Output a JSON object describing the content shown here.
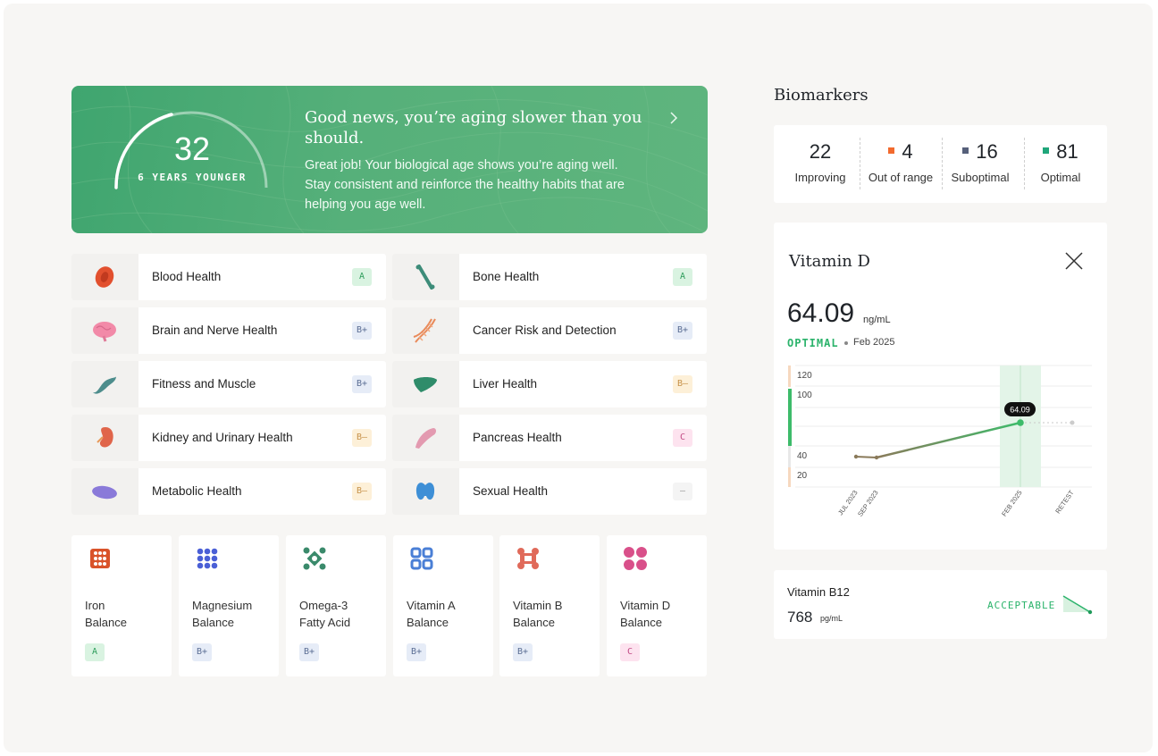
{
  "hero": {
    "age": "32",
    "age_caption": "6 YEARS YOUNGER",
    "title": "Good news, you’re aging slower than you should.",
    "body": "Great job! Your biological age shows you’re aging well. Stay consistent and reinforce the healthy habits that are helping you age well.",
    "accent": "#4fae78",
    "chevron_icon": "chevron-right-icon"
  },
  "health_categories": [
    {
      "label": "Blood Health",
      "grade": "A",
      "icon": "blood-cell-icon"
    },
    {
      "label": "Bone Health",
      "grade": "A",
      "icon": "bone-icon"
    },
    {
      "label": "Brain and Nerve Health",
      "grade": "B+",
      "icon": "brain-icon"
    },
    {
      "label": "Cancer Risk and Detection",
      "grade": "B+",
      "icon": "dna-icon"
    },
    {
      "label": "Fitness and Muscle",
      "grade": "B+",
      "icon": "muscle-icon"
    },
    {
      "label": "Liver Health",
      "grade": "B–",
      "icon": "liver-icon"
    },
    {
      "label": "Kidney and Urinary Health",
      "grade": "B–",
      "icon": "kidney-icon"
    },
    {
      "label": "Pancreas Health",
      "grade": "C",
      "icon": "pancreas-icon"
    },
    {
      "label": "Metabolic Health",
      "grade": "B–",
      "icon": "metabolic-icon"
    },
    {
      "label": "Sexual Health",
      "grade": "–",
      "icon": "thyroid-icon"
    }
  ],
  "nutrients": [
    {
      "line1": "Iron",
      "line2": "Balance",
      "grade": "A",
      "icon": "iron-grid-icon",
      "color": "#d9532a"
    },
    {
      "line1": "Magnesium",
      "line2": "Balance",
      "grade": "B+",
      "icon": "magnesium-grid-icon",
      "color": "#4a5fd6"
    },
    {
      "line1": "Omega-3",
      "line2": "Fatty Acid",
      "grade": "B+",
      "icon": "omega-icon",
      "color": "#3a8a6b"
    },
    {
      "line1": "Vitamin A",
      "line2": "Balance",
      "grade": "B+",
      "icon": "vitamin-a-icon",
      "color": "#4a7fd6"
    },
    {
      "line1": "Vitamin B",
      "line2": "Balance",
      "grade": "B+",
      "icon": "vitamin-b-icon",
      "color": "#e06a5a"
    },
    {
      "line1": "Vitamin D",
      "line2": "Balance",
      "grade": "C",
      "icon": "vitamin-d-icon",
      "color": "#d9508a"
    }
  ],
  "biomarkers": {
    "title": "Biomarkers",
    "stats": [
      {
        "value": "22",
        "label": "Improving",
        "color": ""
      },
      {
        "value": "4",
        "label": "Out of range",
        "color": "#f26a2e"
      },
      {
        "value": "16",
        "label": "Suboptimal",
        "color": "#56607a"
      },
      {
        "value": "81",
        "label": "Optimal",
        "color": "#1fa67a"
      }
    ]
  },
  "vitamin_d": {
    "title": "Vitamin D",
    "value": "64.09",
    "unit": "ng/mL",
    "status": "OPTIMAL",
    "date": "Feb 2025",
    "close_icon": "close-icon",
    "chart_data": {
      "type": "line",
      "y_ticks": [
        "120",
        "100",
        "40",
        "20"
      ],
      "x_labels": [
        "JUL 2023",
        "SEP 2023",
        "FEB 2025",
        "RETEST"
      ],
      "series": [
        {
          "values": [
            34,
            33,
            64.09
          ]
        }
      ],
      "tooltip": "64.09",
      "ylim": [
        0,
        130
      ]
    }
  },
  "vitamin_b12": {
    "name": "Vitamin B12",
    "value": "768",
    "unit": "pg/mL",
    "status": "ACCEPTABLE",
    "trend_icon": "trend-down-icon"
  }
}
